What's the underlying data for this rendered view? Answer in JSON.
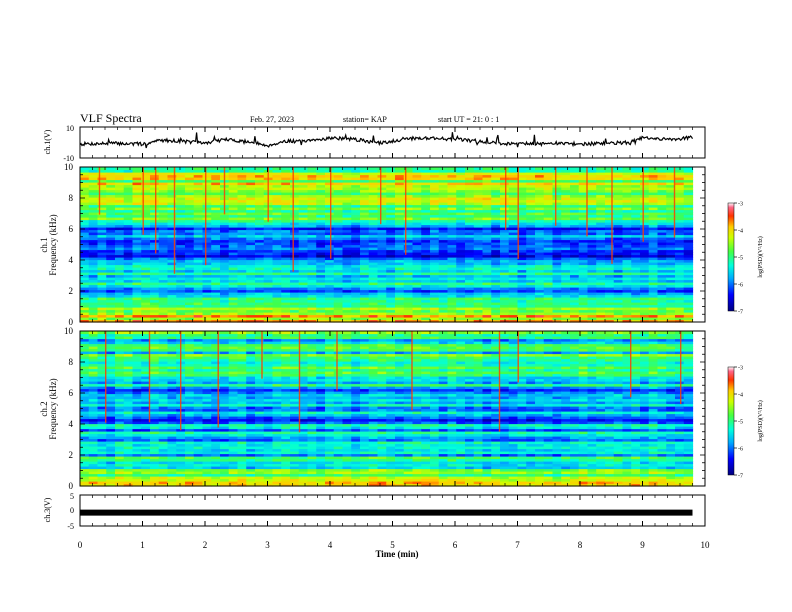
{
  "header": {
    "title": "VLF Spectra",
    "date": "Feb. 27, 2023",
    "station": "station= KAP",
    "start": "start  UT =   21: 0  : 1"
  },
  "chart_data": [
    {
      "type": "line",
      "panel": "waveform-ch1",
      "ylabel": "ch.1(V)",
      "ylim": [
        -10,
        10
      ],
      "yticks": [
        "10",
        "-10"
      ],
      "xlim": [
        0,
        10
      ],
      "x_extent_min": 9.8,
      "series": [
        {
          "x": [
            0.0,
            0.5,
            1.0,
            1.3,
            1.6,
            2.0,
            2.3,
            2.7,
            3.0,
            3.3,
            3.6,
            4.0,
            4.4,
            4.8,
            5.2,
            5.6,
            6.0,
            6.5,
            6.8,
            7.0,
            7.3,
            7.6,
            8.0,
            8.4,
            8.8,
            9.0,
            9.3,
            9.6,
            9.8
          ],
          "values": [
            -1,
            -0.5,
            -1,
            1.5,
            1,
            -0.5,
            2,
            0.5,
            -2,
            1,
            0.5,
            3,
            2,
            -0.5,
            2.5,
            3,
            2,
            0.5,
            -1,
            0,
            -1,
            -0.5,
            -1,
            -0.5,
            0,
            3,
            2,
            2.5,
            3.5
          ]
        }
      ],
      "color": "#000000"
    },
    {
      "type": "heatmap",
      "panel": "spectrogram-ch1",
      "ylabel_line1": "ch.1",
      "ylabel_line2": "Frequency (kHz)",
      "ylim": [
        0,
        10
      ],
      "yticks": [
        "0",
        "2",
        "4",
        "6",
        "8",
        "10"
      ],
      "xlim": [
        0,
        10
      ],
      "x_extent_min": 9.8,
      "colorbar": {
        "label": "log(PSD)(V²/Hz)",
        "ticks": [
          "-3",
          "-4",
          "-5",
          "-6",
          "-7"
        ],
        "range": [
          -7,
          -3
        ]
      },
      "band_profile_khz": [
        0,
        0.5,
        1,
        2,
        3,
        4,
        5,
        6,
        6.5,
        7,
        8,
        9,
        10
      ],
      "band_profile_log_psd": [
        -3.4,
        -4.0,
        -4.9,
        -5.3,
        -5.3,
        -5.8,
        -5.9,
        -5.7,
        -5.0,
        -4.8,
        -4.6,
        -4.3,
        -4.0
      ],
      "spike_times_min": [
        0.3,
        1.0,
        1.2,
        1.5,
        2.0,
        2.3,
        3.0,
        3.4,
        4.0,
        4.8,
        5.2,
        6.8,
        7.0,
        7.6,
        8.1,
        8.5,
        9.0,
        9.5
      ]
    },
    {
      "type": "heatmap",
      "panel": "spectrogram-ch2",
      "ylabel_line1": "ch.2",
      "ylabel_line2": "Frequency (kHz)",
      "ylim": [
        0,
        10
      ],
      "yticks": [
        "0",
        "2",
        "4",
        "6",
        "8",
        "10"
      ],
      "xlim": [
        0,
        10
      ],
      "x_extent_min": 9.8,
      "colorbar": {
        "label": "log(PSD)(V²/Hz)",
        "ticks": [
          "-3",
          "-4",
          "-5",
          "-6",
          "-7"
        ],
        "range": [
          -7,
          -3
        ]
      },
      "band_profile_khz": [
        0,
        0.5,
        1,
        2,
        3,
        4,
        5,
        6,
        7,
        8,
        9,
        10
      ],
      "band_profile_log_psd": [
        -3.6,
        -4.6,
        -5.0,
        -5.2,
        -5.3,
        -5.6,
        -5.7,
        -5.6,
        -5.3,
        -5.0,
        -4.9,
        -4.7
      ],
      "spike_times_min": [
        0.4,
        1.1,
        1.6,
        2.2,
        2.9,
        3.5,
        4.1,
        5.3,
        6.7,
        7.0,
        8.8,
        9.6
      ]
    },
    {
      "type": "line",
      "panel": "waveform-ch3",
      "ylabel": "ch.3(V)",
      "ylim": [
        -5,
        5
      ],
      "yticks": [
        "5",
        "0",
        "-5"
      ],
      "xlim": [
        0,
        10
      ],
      "x_extent_min": 9.8,
      "series": [
        {
          "x": [
            0,
            9.8
          ],
          "values": [
            -0.7,
            -0.7
          ]
        }
      ],
      "color": "#000000"
    }
  ],
  "xaxis": {
    "label": "Time  (min)",
    "ticks": [
      "0",
      "1",
      "2",
      "3",
      "4",
      "5",
      "6",
      "7",
      "8",
      "9",
      "10"
    ]
  }
}
